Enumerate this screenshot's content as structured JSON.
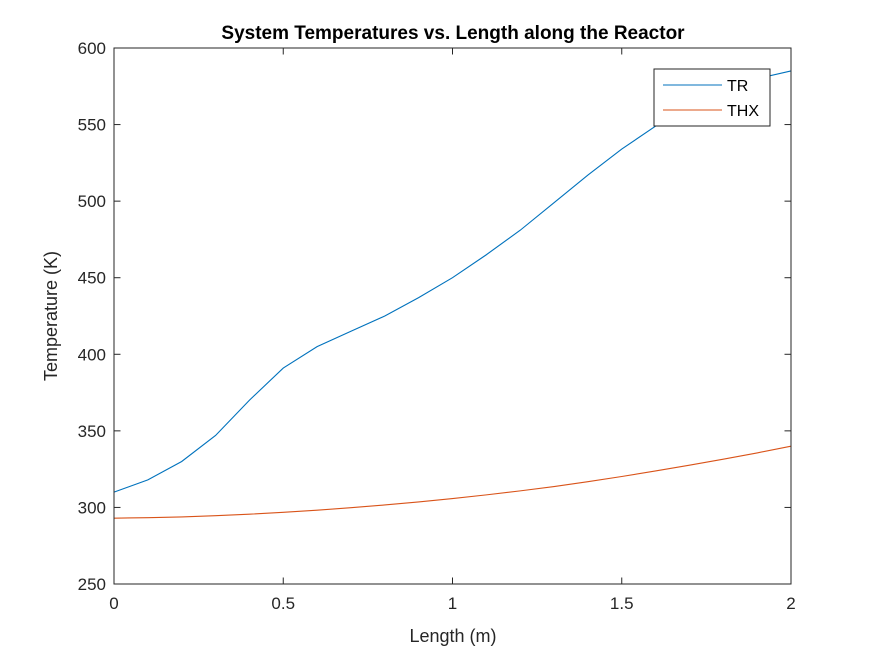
{
  "chart_data": {
    "type": "line",
    "title": "System Temperatures vs. Length along the Reactor",
    "xlabel": "Length (m)",
    "ylabel": "Temperature (K)",
    "xlim": [
      0,
      2
    ],
    "ylim": [
      250,
      600
    ],
    "xticks": [
      0,
      0.5,
      1,
      1.5,
      2
    ],
    "xtick_labels": [
      "0",
      "0.5",
      "1",
      "1.5",
      "2"
    ],
    "yticks": [
      250,
      300,
      350,
      400,
      450,
      500,
      550,
      600
    ],
    "ytick_labels": [
      "250",
      "300",
      "350",
      "400",
      "450",
      "500",
      "550",
      "600"
    ],
    "grid": false,
    "legend_position": "top-right",
    "series": [
      {
        "name": "TR",
        "color": "#0072bd",
        "x": [
          0,
          0.1,
          0.2,
          0.3,
          0.4,
          0.5,
          0.6,
          0.7,
          0.8,
          0.9,
          1.0,
          1.1,
          1.2,
          1.3,
          1.4,
          1.5,
          1.6,
          1.7,
          1.8,
          1.9,
          2.0
        ],
        "y": [
          310,
          318,
          330,
          347,
          370,
          391,
          405,
          415,
          425,
          437,
          450,
          465,
          481,
          499,
          517,
          534,
          549,
          562,
          573,
          580,
          585
        ]
      },
      {
        "name": "THX",
        "color": "#d95319",
        "x": [
          0,
          0.1,
          0.2,
          0.3,
          0.4,
          0.5,
          0.6,
          0.7,
          0.8,
          0.9,
          1.0,
          1.1,
          1.2,
          1.3,
          1.4,
          1.5,
          1.6,
          1.7,
          1.8,
          1.9,
          2.0
        ],
        "y": [
          293,
          293.3,
          293.8,
          294.6,
          295.6,
          296.8,
          298.2,
          299.8,
          301.6,
          303.6,
          305.8,
          308.2,
          310.8,
          313.6,
          316.8,
          320.2,
          323.8,
          327.6,
          331.5,
          335.6,
          340
        ]
      }
    ]
  }
}
